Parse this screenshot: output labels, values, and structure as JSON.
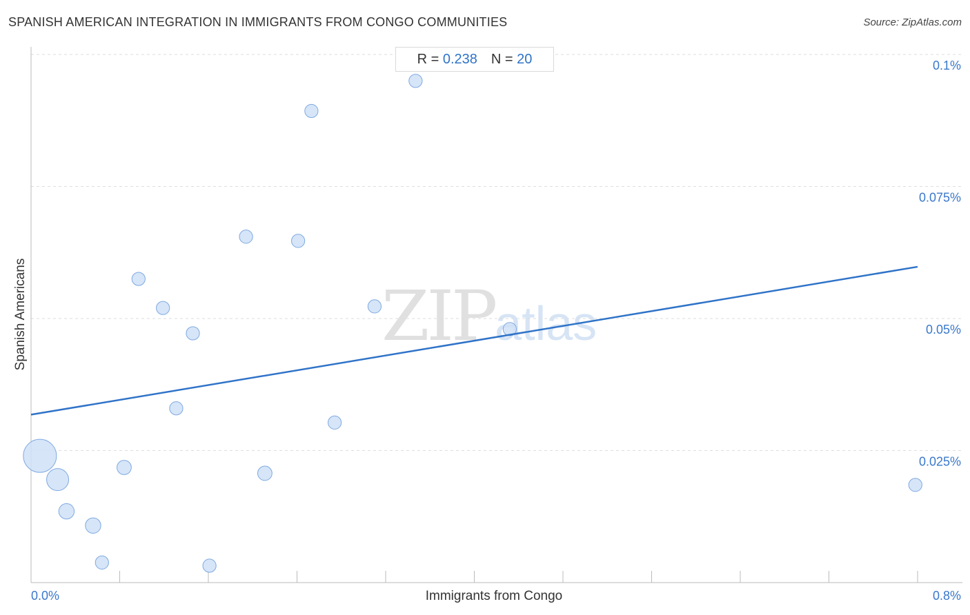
{
  "header": {
    "title": "SPANISH AMERICAN INTEGRATION IN IMMIGRANTS FROM CONGO COMMUNITIES",
    "source": "Source: ZipAtlas.com"
  },
  "stats": {
    "r_label": "R =",
    "r_value": "0.238",
    "n_label": "N =",
    "n_value": "20"
  },
  "watermark": {
    "zip": "ZIP",
    "atlas": "atlas"
  },
  "colors": {
    "point_fill": "#cfe0f7",
    "point_stroke": "#7ea9e0",
    "trend_line": "#2f73c8",
    "tick_label": "#3a78cc",
    "grid": "#dddddd"
  },
  "chart_data": {
    "type": "scatter",
    "xlabel": "Immigrants from Congo",
    "ylabel": "Spanish Americans",
    "xlim": [
      0,
      0.8
    ],
    "ylim": [
      0,
      0.1
    ],
    "x_tick_labels": [
      {
        "value": 0,
        "label": "0.0%"
      },
      {
        "value": 0.8,
        "label": "0.8%"
      }
    ],
    "y_tick_labels": [
      {
        "value": 0.1,
        "label": "0.1%"
      },
      {
        "value": 0.075,
        "label": "0.075%"
      },
      {
        "value": 0.05,
        "label": "0.05%"
      },
      {
        "value": 0.025,
        "label": "0.025%"
      }
    ],
    "grid": true,
    "trend_line": {
      "x": [
        0,
        0.8
      ],
      "y": [
        0.0318,
        0.0598
      ]
    },
    "points": [
      {
        "x": 0.008,
        "y": 0.024,
        "size": 3
      },
      {
        "x": 0.024,
        "y": 0.0195,
        "size": 2
      },
      {
        "x": 0.032,
        "y": 0.0135,
        "size": 1.4
      },
      {
        "x": 0.056,
        "y": 0.0108,
        "size": 1.4
      },
      {
        "x": 0.064,
        "y": 0.0038,
        "size": 1.2
      },
      {
        "x": 0.084,
        "y": 0.0218,
        "size": 1.3
      },
      {
        "x": 0.097,
        "y": 0.0575,
        "size": 1.2
      },
      {
        "x": 0.119,
        "y": 0.052,
        "size": 1.2
      },
      {
        "x": 0.131,
        "y": 0.033,
        "size": 1.2
      },
      {
        "x": 0.146,
        "y": 0.0472,
        "size": 1.2
      },
      {
        "x": 0.161,
        "y": 0.0032,
        "size": 1.2
      },
      {
        "x": 0.194,
        "y": 0.0655,
        "size": 1.2
      },
      {
        "x": 0.211,
        "y": 0.0207,
        "size": 1.3
      },
      {
        "x": 0.241,
        "y": 0.0647,
        "size": 1.2
      },
      {
        "x": 0.253,
        "y": 0.0893,
        "size": 1.2
      },
      {
        "x": 0.274,
        "y": 0.0303,
        "size": 1.2
      },
      {
        "x": 0.31,
        "y": 0.0523,
        "size": 1.2
      },
      {
        "x": 0.347,
        "y": 0.095,
        "size": 1.2
      },
      {
        "x": 0.432,
        "y": 0.048,
        "size": 1.2
      },
      {
        "x": 0.798,
        "y": 0.0185,
        "size": 1.2
      }
    ]
  }
}
